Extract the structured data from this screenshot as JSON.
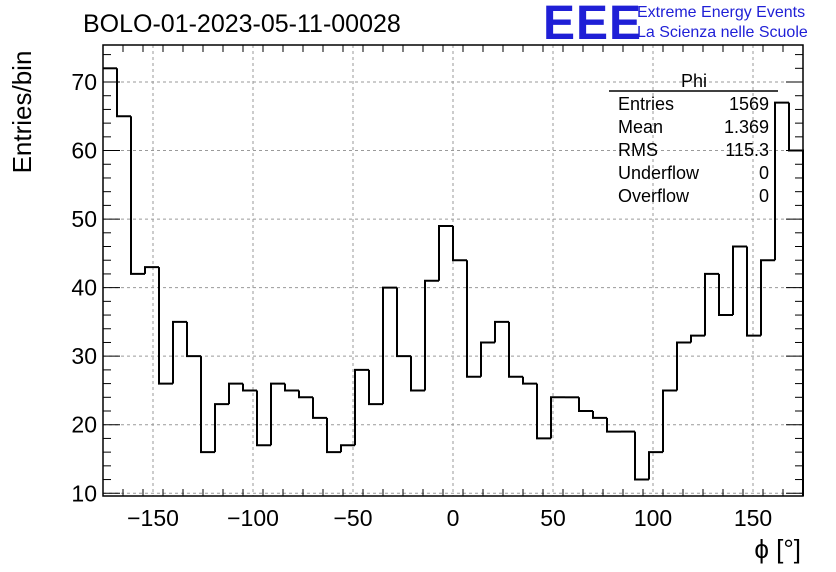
{
  "title": "BOLO-01-2023-05-11-00028",
  "logo": {
    "mark": "EEE",
    "line1": "Extreme Energy Events",
    "line2": "La Scienza nelle Scuole",
    "color": "#1f1fd6"
  },
  "chart_data": {
    "type": "bar",
    "histogram": true,
    "xlabel": "ϕ [°]",
    "ylabel": "Entries/bin",
    "xlim": [
      -175,
      175
    ],
    "ylim": [
      9.6,
      75.4
    ],
    "bin_width": 7,
    "grid": true,
    "x_ticks": [
      -150,
      -100,
      -50,
      0,
      50,
      100,
      150
    ],
    "x_tick_labels": [
      "−150",
      "−100",
      "−50",
      "0",
      "50",
      "100",
      "150"
    ],
    "y_ticks": [
      10,
      20,
      30,
      40,
      50,
      60,
      70
    ],
    "y_tick_labels": [
      "10",
      "20",
      "30",
      "40",
      "50",
      "60",
      "70"
    ],
    "bin_low_edges": [
      -175,
      -168,
      -161,
      -154,
      -147,
      -140,
      -133,
      -126,
      -119,
      -112,
      -105,
      -98,
      -91,
      -84,
      -77,
      -70,
      -63,
      -56,
      -49,
      -42,
      -35,
      -28,
      -21,
      -14,
      -7,
      0,
      7,
      14,
      21,
      28,
      35,
      42,
      49,
      56,
      63,
      70,
      77,
      84,
      91,
      98,
      105,
      112,
      119,
      126,
      133,
      140,
      147,
      154,
      161,
      168
    ],
    "values": [
      72,
      65,
      42,
      43,
      26,
      35,
      30,
      16,
      23,
      26,
      25,
      17,
      26,
      25,
      24,
      21,
      16,
      17,
      28,
      23,
      40,
      30,
      25,
      41,
      49,
      44,
      27,
      32,
      35,
      27,
      26,
      18,
      24,
      24,
      22,
      21,
      19,
      19,
      12,
      16,
      25,
      32,
      33,
      42,
      36,
      46,
      33,
      44,
      67,
      60
    ],
    "line_color": "#000000",
    "stats_box": {
      "name": "Phi",
      "rows": [
        {
          "label": "Entries",
          "value": "1569"
        },
        {
          "label": "Mean",
          "value": "1.369"
        },
        {
          "label": "RMS",
          "value": "115.3"
        },
        {
          "label": "Underflow",
          "value": "0"
        },
        {
          "label": "Overflow",
          "value": "0"
        }
      ]
    }
  }
}
